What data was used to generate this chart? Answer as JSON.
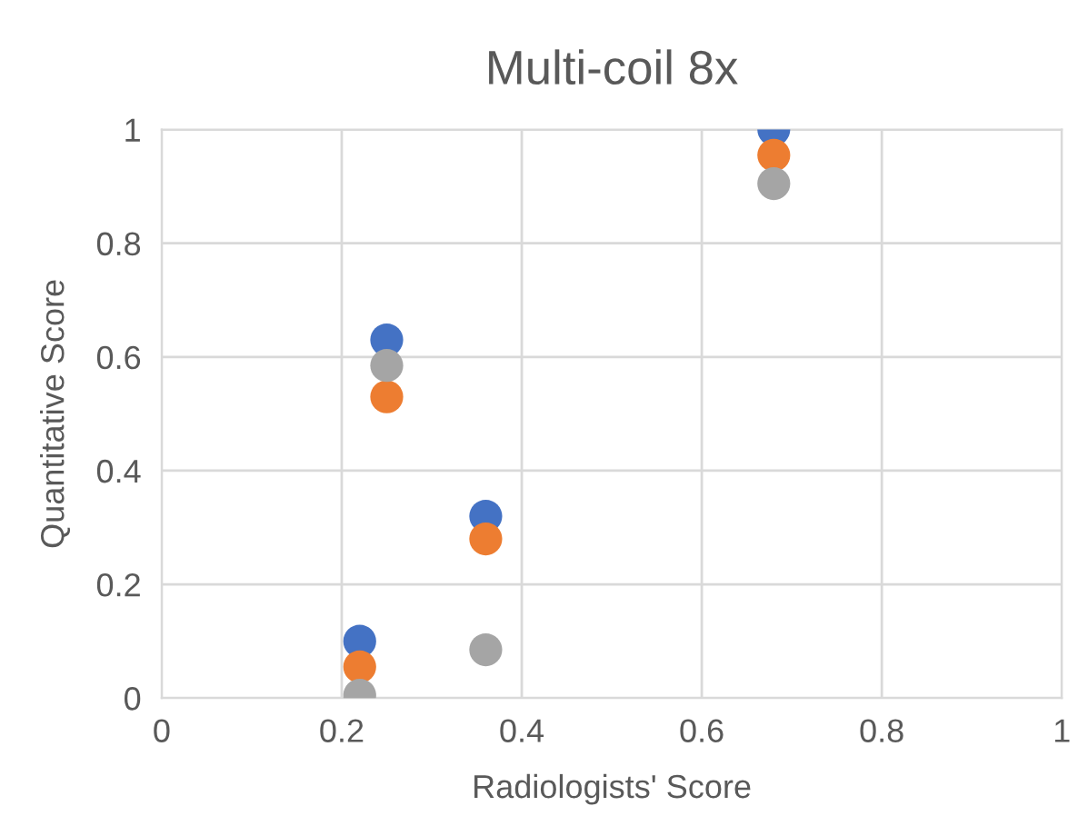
{
  "chart_data": {
    "type": "scatter",
    "title": "Multi-coil 8x",
    "xlabel": "Radiologists' Score",
    "ylabel": "Quantitative Score",
    "x": [
      0.22,
      0.25,
      0.36,
      0.68
    ],
    "series": [
      {
        "color": "#4472c4",
        "values": [
          0.1,
          0.63,
          0.32,
          1.0
        ]
      },
      {
        "color": "#ed7d31",
        "values": [
          0.055,
          0.53,
          0.28,
          0.955
        ]
      },
      {
        "color": "#a5a5a5",
        "values": [
          0.005,
          0.585,
          0.085,
          0.905
        ]
      }
    ],
    "xlim": [
      0,
      1
    ],
    "xticks": [
      0,
      0.2,
      0.4,
      0.6,
      0.8,
      1
    ],
    "ylim": [
      0,
      1
    ],
    "yticks": [
      0,
      0.2,
      0.4,
      0.6,
      0.8,
      1
    ],
    "grid": true,
    "marker": "circle",
    "legend": false
  }
}
